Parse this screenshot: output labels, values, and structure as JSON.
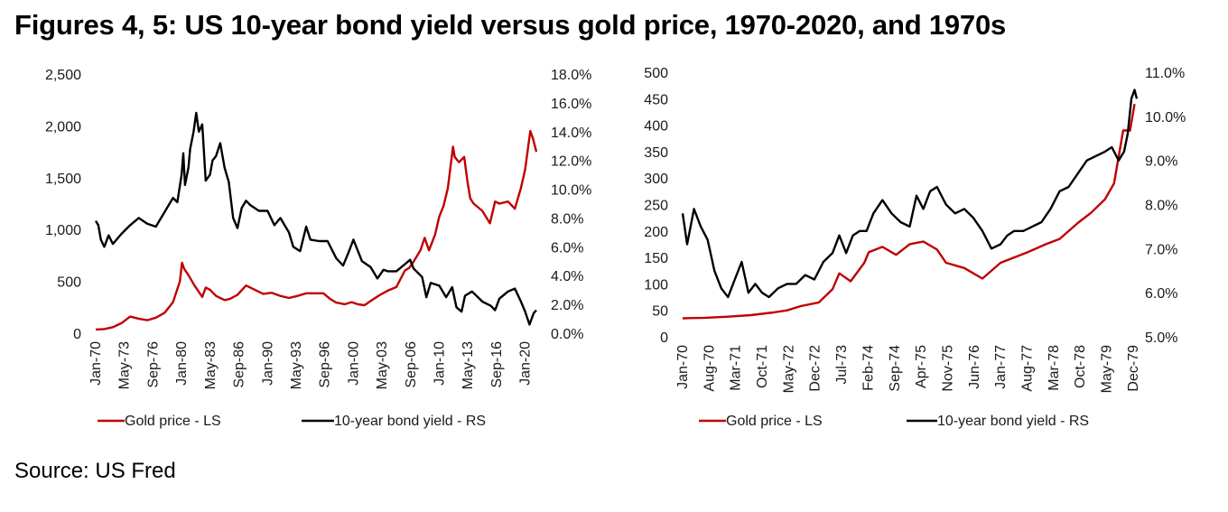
{
  "title": "Figures 4, 5: US 10-year bond yield versus gold price, 1970-2020, and 1970s",
  "source": "Source: US Fred",
  "colors": {
    "gold": "#c00000",
    "yield": "#000000"
  },
  "chart_data": [
    {
      "type": "line",
      "title": "US 10-year bond yield versus gold price, 1970-2020",
      "x_start": 1970.0,
      "x_end": 2021.3,
      "x_ticks": [
        "Jan-70",
        "May-73",
        "Sep-76",
        "Jan-80",
        "May-83",
        "Sep-86",
        "Jan-90",
        "May-93",
        "Sep-96",
        "Jan-00",
        "May-03",
        "Sep-06",
        "Jan-10",
        "May-13",
        "Sep-16",
        "Jan-20"
      ],
      "x_tick_values": [
        1970.0,
        1973.33,
        1976.67,
        1980.0,
        1983.33,
        1986.67,
        1990.0,
        1993.33,
        1996.67,
        2000.0,
        2003.33,
        2006.67,
        2010.0,
        2013.33,
        2016.67,
        2020.0
      ],
      "left_axis": {
        "label": "Gold price - LS",
        "ylim": [
          0,
          2500
        ],
        "ticks": [
          "0",
          "500",
          "1,000",
          "1,500",
          "2,000",
          "2,500"
        ],
        "tick_values": [
          0,
          500,
          1000,
          1500,
          2000,
          2500
        ]
      },
      "right_axis": {
        "label": "10-year bond yield - RS",
        "ylim": [
          0,
          18
        ],
        "ticks": [
          "0.0%",
          "2.0%",
          "4.0%",
          "6.0%",
          "8.0%",
          "10.0%",
          "12.0%",
          "14.0%",
          "16.0%",
          "18.0%"
        ],
        "tick_values": [
          0,
          2,
          4,
          6,
          8,
          10,
          12,
          14,
          16,
          18
        ]
      },
      "series": [
        {
          "name": "Gold price - LS",
          "axis": "left",
          "color": "#c00000",
          "x": [
            1970,
            1971,
            1972,
            1973,
            1974,
            1975,
            1976,
            1977,
            1978,
            1979,
            1979.8,
            1980.05,
            1980.3,
            1980.8,
            1981.5,
            1982.4,
            1982.8,
            1983.3,
            1984,
            1985,
            1985.6,
            1986.5,
            1987.5,
            1988.5,
            1989.5,
            1990.5,
            1991.5,
            1992.5,
            1993.5,
            1994.5,
            1995.5,
            1996.5,
            1997.3,
            1998,
            1999,
            1999.8,
            2000.5,
            2001.3,
            2002,
            2003,
            2004,
            2005,
            2006,
            2006.5,
            2007,
            2007.8,
            2008.3,
            2008.8,
            2009.5,
            2010,
            2010.5,
            2011,
            2011.6,
            2011.8,
            2012.3,
            2012.9,
            2013.3,
            2013.6,
            2014,
            2015,
            2015.9,
            2016.5,
            2017,
            2018,
            2018.8,
            2019.5,
            2020,
            2020.6,
            2020.9,
            2021.3
          ],
          "values": [
            36,
            40,
            58,
            97,
            160,
            140,
            125,
            150,
            195,
            300,
            500,
            680,
            620,
            560,
            460,
            350,
            440,
            420,
            360,
            320,
            330,
            370,
            460,
            420,
            380,
            390,
            360,
            340,
            360,
            385,
            385,
            385,
            330,
            295,
            280,
            300,
            280,
            270,
            310,
            365,
            410,
            445,
            605,
            630,
            690,
            800,
            920,
            800,
            950,
            1125,
            1230,
            1400,
            1800,
            1700,
            1650,
            1700,
            1450,
            1300,
            1250,
            1180,
            1060,
            1270,
            1250,
            1270,
            1200,
            1400,
            1580,
            1950,
            1880,
            1750
          ]
        },
        {
          "name": "10-year bond yield - RS",
          "axis": "right",
          "color": "#000000",
          "x": [
            1970,
            1970.3,
            1970.6,
            1971,
            1971.5,
            1972,
            1973,
            1974,
            1975,
            1976,
            1977,
            1978,
            1979,
            1979.5,
            1980,
            1980.2,
            1980.4,
            1980.8,
            1981,
            1981.4,
            1981.7,
            1982,
            1982.4,
            1982.8,
            1983.3,
            1983.6,
            1984,
            1984.5,
            1985,
            1985.5,
            1986,
            1986.5,
            1987,
            1987.5,
            1988,
            1989,
            1990,
            1990.8,
            1991.5,
            1992.5,
            1993,
            1993.8,
            1994.5,
            1995,
            1996,
            1997,
            1998,
            1998.8,
            1999.5,
            2000,
            2001,
            2002,
            2002.8,
            2003.5,
            2004,
            2005,
            2006,
            2006.6,
            2007,
            2008,
            2008.5,
            2009,
            2010,
            2010.8,
            2011.5,
            2012,
            2012.6,
            2013,
            2013.8,
            2014.5,
            2015,
            2016,
            2016.5,
            2017,
            2018,
            2018.8,
            2019.5,
            2020,
            2020.5,
            2021,
            2021.3
          ],
          "values": [
            7.8,
            7.5,
            6.5,
            6.0,
            6.8,
            6.2,
            6.9,
            7.5,
            8.0,
            7.6,
            7.4,
            8.4,
            9.4,
            9.1,
            11.0,
            12.5,
            10.3,
            11.5,
            12.8,
            14.0,
            15.3,
            14.0,
            14.5,
            10.6,
            11.0,
            12.0,
            12.3,
            13.2,
            11.5,
            10.5,
            8.0,
            7.3,
            8.7,
            9.2,
            8.9,
            8.5,
            8.5,
            7.5,
            8.0,
            7.0,
            6.0,
            5.7,
            7.4,
            6.5,
            6.4,
            6.4,
            5.2,
            4.7,
            5.7,
            6.5,
            5.0,
            4.6,
            3.8,
            4.4,
            4.3,
            4.3,
            4.8,
            5.1,
            4.5,
            3.9,
            2.5,
            3.5,
            3.3,
            2.5,
            3.2,
            1.8,
            1.5,
            2.6,
            2.9,
            2.5,
            2.2,
            1.9,
            1.6,
            2.4,
            2.9,
            3.1,
            2.2,
            1.5,
            0.6,
            1.4,
            1.6
          ]
        }
      ],
      "legend": [
        "Gold price - LS",
        "10-year bond yield - RS"
      ],
      "legend_position": "bottom"
    },
    {
      "type": "line",
      "title": "US 10-year bond yield versus gold price, 1970s",
      "x_start": 1970.0,
      "x_end": 1980.0,
      "x_ticks": [
        "Jan-70",
        "Aug-70",
        "Mar-71",
        "Oct-71",
        "May-72",
        "Dec-72",
        "Jul-73",
        "Feb-74",
        "Sep-74",
        "Apr-75",
        "Nov-75",
        "Jun-76",
        "Jan-77",
        "Aug-77",
        "Mar-78",
        "Oct-78",
        "May-79",
        "Dec-79"
      ],
      "x_tick_values": [
        1970.0,
        1970.583,
        1971.167,
        1971.75,
        1972.333,
        1972.917,
        1973.5,
        1974.083,
        1974.667,
        1975.25,
        1975.833,
        1976.417,
        1977.0,
        1977.583,
        1978.167,
        1978.75,
        1979.333,
        1979.917
      ],
      "left_axis": {
        "label": "Gold price - LS",
        "ylim": [
          0,
          500
        ],
        "ticks": [
          "0",
          "50",
          "100",
          "150",
          "200",
          "250",
          "300",
          "350",
          "400",
          "450",
          "500"
        ],
        "tick_values": [
          0,
          50,
          100,
          150,
          200,
          250,
          300,
          350,
          400,
          450,
          500
        ]
      },
      "right_axis": {
        "label": "10-year bond yield - RS",
        "ylim": [
          5.0,
          11.0
        ],
        "ticks": [
          "5.0%",
          "6.0%",
          "7.0%",
          "8.0%",
          "9.0%",
          "10.0%",
          "11.0%"
        ],
        "tick_values": [
          5,
          6,
          7,
          8,
          9,
          10,
          11
        ]
      },
      "series": [
        {
          "name": "Gold price - LS",
          "axis": "left",
          "color": "#c00000",
          "x": [
            1970,
            1970.5,
            1971,
            1971.5,
            1972,
            1972.3,
            1972.6,
            1973,
            1973.3,
            1973.45,
            1973.7,
            1974,
            1974.1,
            1974.4,
            1974.7,
            1975,
            1975.3,
            1975.6,
            1975.8,
            1976.2,
            1976.6,
            1977,
            1977.3,
            1977.6,
            1978,
            1978.3,
            1978.7,
            1979,
            1979.3,
            1979.5,
            1979.7,
            1979.85,
            1979.95
          ],
          "values": [
            35,
            36,
            38,
            41,
            46,
            50,
            58,
            65,
            90,
            120,
            105,
            140,
            160,
            170,
            155,
            175,
            180,
            165,
            140,
            130,
            110,
            140,
            150,
            160,
            175,
            185,
            215,
            235,
            260,
            290,
            390,
            390,
            440
          ]
        },
        {
          "name": "10-year bond yield - RS",
          "axis": "right",
          "color": "#000000",
          "x": [
            1970,
            1970.1,
            1970.25,
            1970.4,
            1970.55,
            1970.7,
            1970.85,
            1971,
            1971.15,
            1971.3,
            1971.45,
            1971.6,
            1971.75,
            1971.9,
            1972.1,
            1972.3,
            1972.5,
            1972.7,
            1972.9,
            1973.1,
            1973.3,
            1973.45,
            1973.6,
            1973.75,
            1973.9,
            1974.05,
            1974.2,
            1974.4,
            1974.6,
            1974.8,
            1975.0,
            1975.15,
            1975.3,
            1975.45,
            1975.6,
            1975.8,
            1976.0,
            1976.2,
            1976.4,
            1976.6,
            1976.8,
            1977.0,
            1977.15,
            1977.3,
            1977.5,
            1977.7,
            1977.9,
            1978.1,
            1978.3,
            1978.5,
            1978.7,
            1978.9,
            1979.1,
            1979.3,
            1979.45,
            1979.6,
            1979.72,
            1979.8,
            1979.88,
            1979.95,
            1980.0
          ],
          "values": [
            7.8,
            7.1,
            7.9,
            7.5,
            7.2,
            6.5,
            6.1,
            5.9,
            6.3,
            6.7,
            6.0,
            6.2,
            6.0,
            5.9,
            6.1,
            6.2,
            6.2,
            6.4,
            6.3,
            6.7,
            6.9,
            7.3,
            6.9,
            7.3,
            7.4,
            7.4,
            7.8,
            8.1,
            7.8,
            7.6,
            7.5,
            8.2,
            7.9,
            8.3,
            8.4,
            8.0,
            7.8,
            7.9,
            7.7,
            7.4,
            7.0,
            7.1,
            7.3,
            7.4,
            7.4,
            7.5,
            7.6,
            7.9,
            8.3,
            8.4,
            8.7,
            9.0,
            9.1,
            9.2,
            9.3,
            9.0,
            9.2,
            9.6,
            10.4,
            10.6,
            10.4
          ]
        }
      ],
      "legend": [
        "Gold price - LS",
        "10-year bond yield - RS"
      ],
      "legend_position": "bottom"
    }
  ]
}
